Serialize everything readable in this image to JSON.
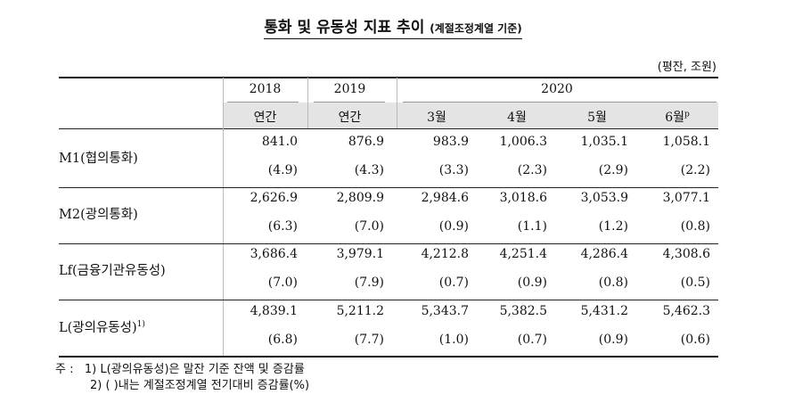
{
  "title": {
    "main": "통화 및 유동성 지표 추이",
    "sub": "(계절조정계열 기준)"
  },
  "unit": "(평잔, 조원)",
  "header": {
    "years": [
      "2018",
      "2019",
      "2020"
    ],
    "periods": [
      "연간",
      "연간",
      "3월",
      "4월",
      "5월",
      "6월"
    ],
    "p_mark": "p"
  },
  "rows": [
    {
      "label": "M1(협의통화)",
      "sup": "",
      "values": [
        "841.0",
        "876.9",
        "983.9",
        "1,006.3",
        "1,035.1",
        "1,058.1"
      ],
      "growth": [
        "(4.9)",
        "(4.3)",
        "(3.3)",
        "(2.3)",
        "(2.9)",
        "(2.2)"
      ]
    },
    {
      "label": "M2(광의통화)",
      "sup": "",
      "values": [
        "2,626.9",
        "2,809.9",
        "2,984.6",
        "3,018.6",
        "3,053.9",
        "3,077.1"
      ],
      "growth": [
        "(6.3)",
        "(7.0)",
        "(0.9)",
        "(1.1)",
        "(1.2)",
        "(0.8)"
      ]
    },
    {
      "label": "Lf(금융기관유동성)",
      "sup": "",
      "values": [
        "3,686.4",
        "3,979.1",
        "4,212.8",
        "4,251.4",
        "4,286.4",
        "4,308.6"
      ],
      "growth": [
        "(7.0)",
        "(7.9)",
        "(0.7)",
        "(0.9)",
        "(0.8)",
        "(0.5)"
      ]
    },
    {
      "label": "L(광의유동성)",
      "sup": "1)",
      "values": [
        "4,839.1",
        "5,211.2",
        "5,343.7",
        "5,382.5",
        "5,431.2",
        "5,462.3"
      ],
      "growth": [
        "(6.8)",
        "(7.7)",
        "(1.0)",
        "(0.7)",
        "(0.9)",
        "(0.6)"
      ]
    }
  ],
  "notes": {
    "prefix": "주 :",
    "items": [
      "1) L(광의유동성)은 말잔 기준 잔액 및 증감률",
      "2) (    )내는 계절조정계열 전기대비 증감률(%)"
    ]
  }
}
